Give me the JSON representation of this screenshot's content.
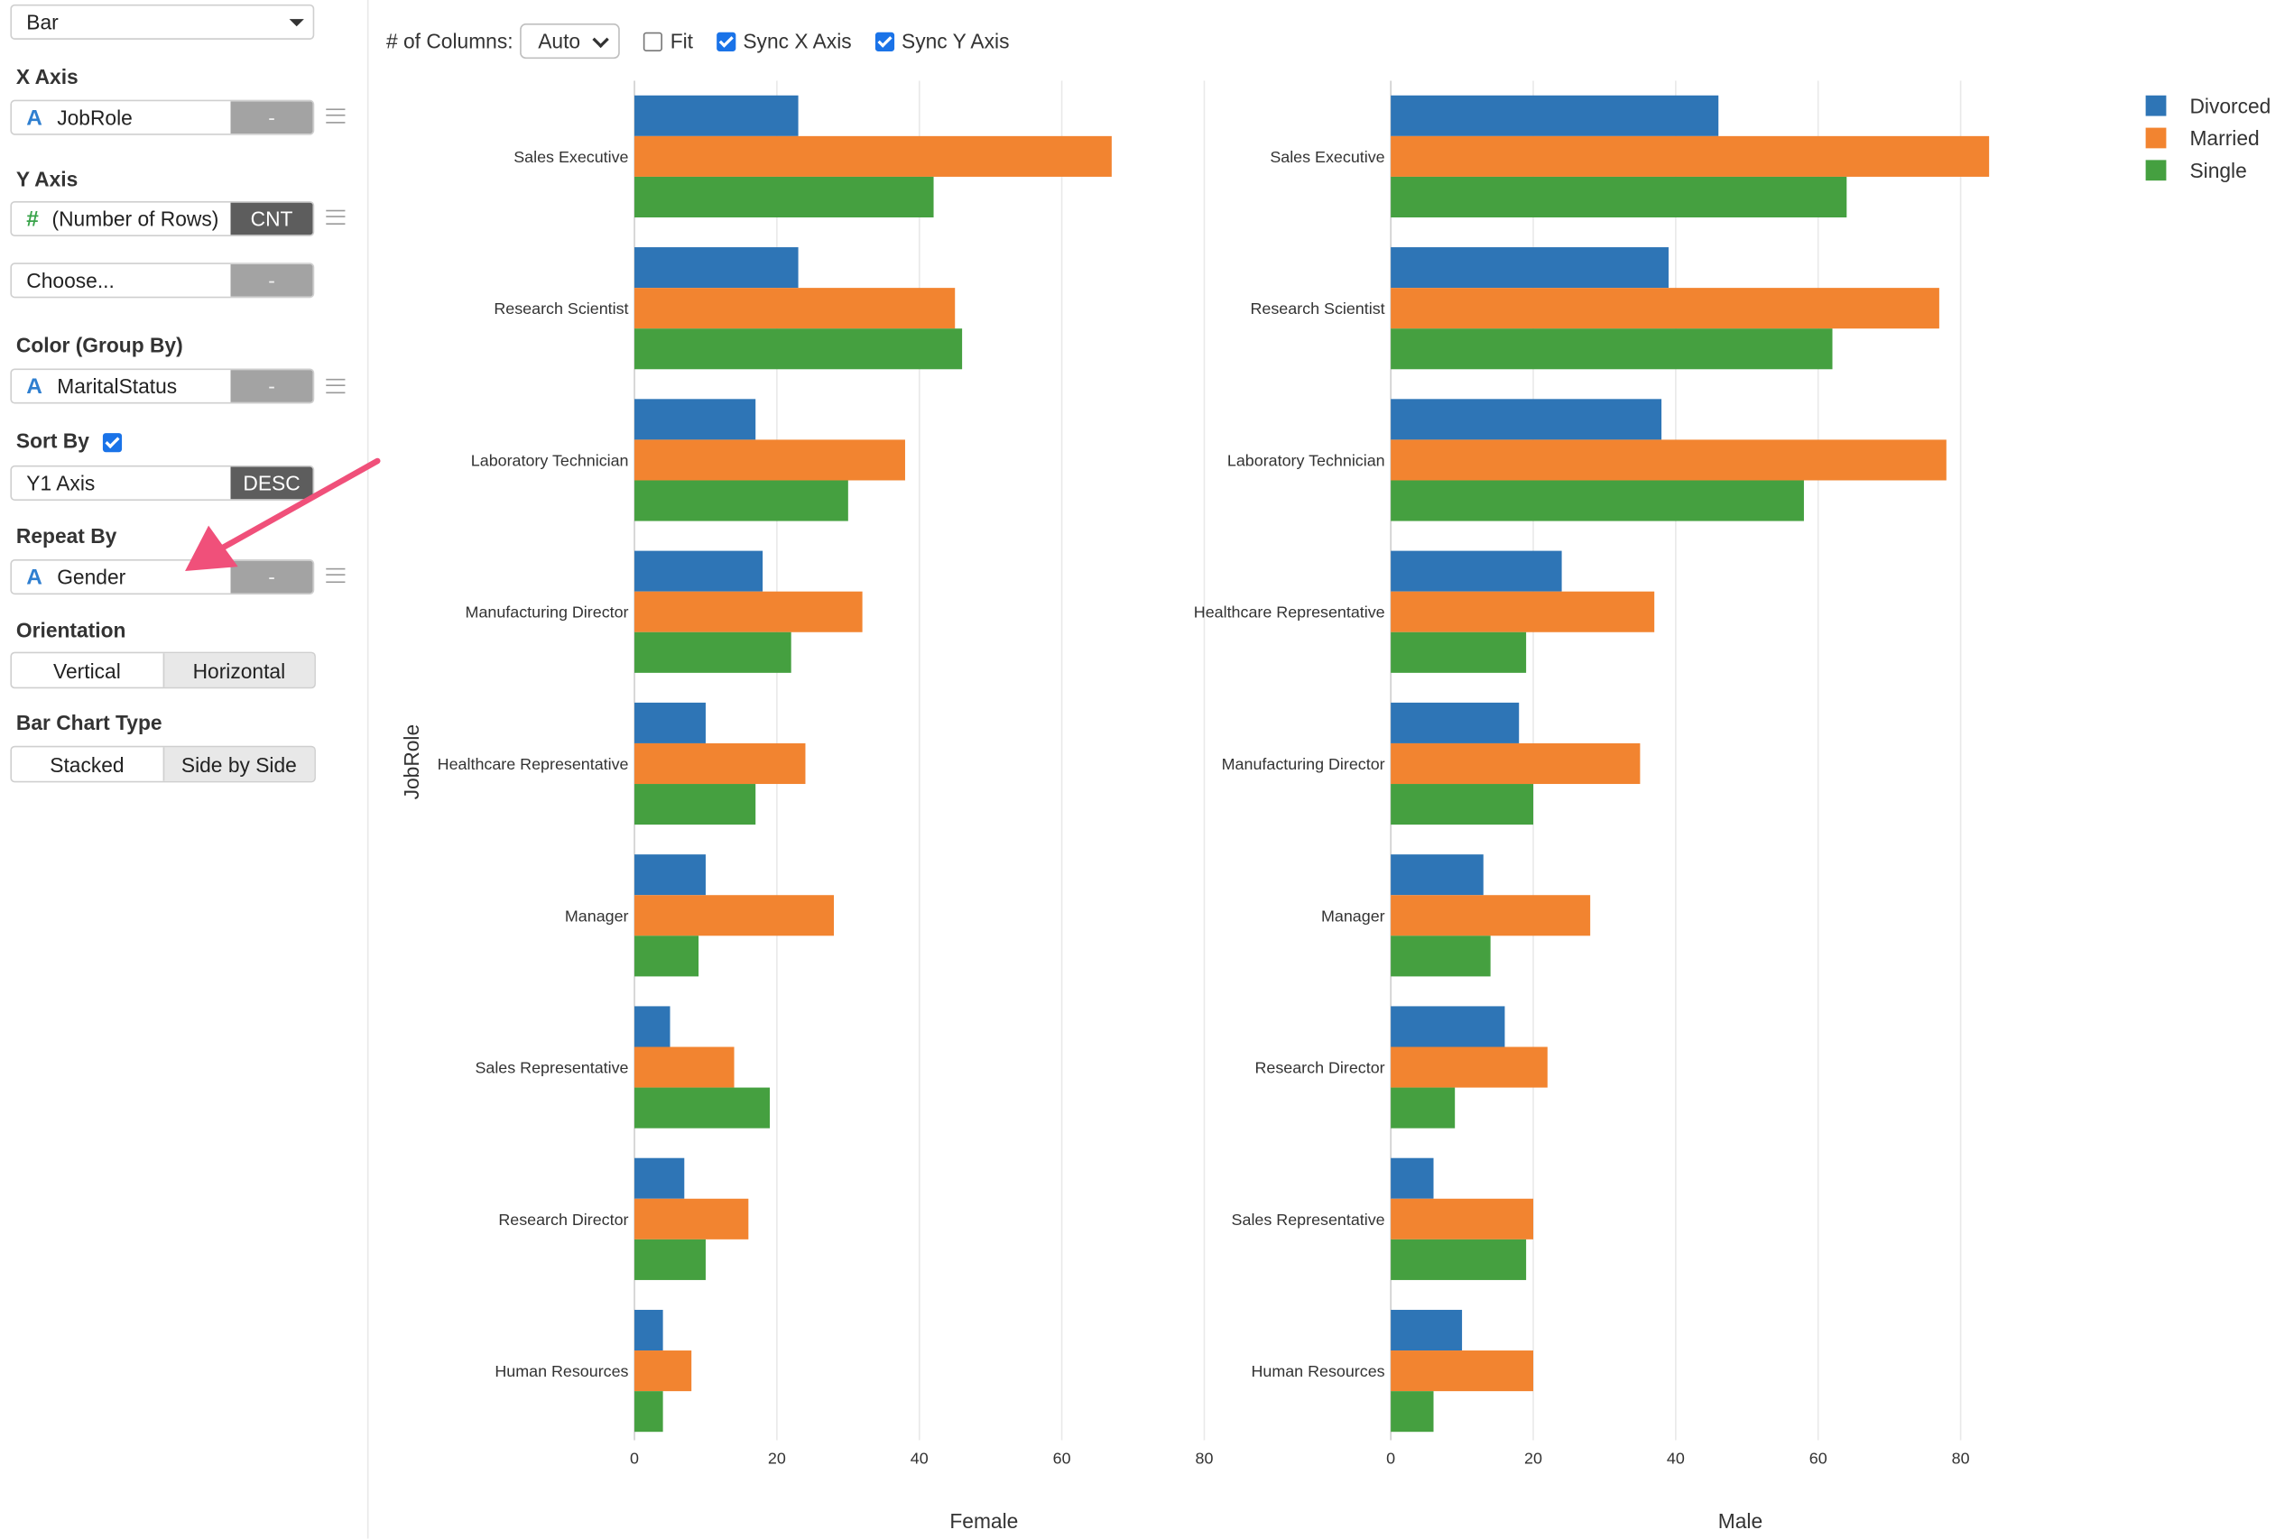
{
  "sidebar": {
    "chart_type": "Bar",
    "x_axis": {
      "label": "X Axis",
      "field": "JobRole",
      "field_type_icon": "A",
      "agg": "-"
    },
    "y_axis": {
      "label": "Y Axis",
      "field": "(Number of Rows)",
      "field_type_icon": "#",
      "agg": "CNT",
      "second_field": "Choose...",
      "second_agg": "-"
    },
    "color": {
      "label": "Color (Group By)",
      "field": "MaritalStatus",
      "field_type_icon": "A",
      "agg": "-"
    },
    "sort": {
      "label": "Sort By",
      "checked": true,
      "field": "Y1 Axis",
      "order": "DESC"
    },
    "repeat": {
      "label": "Repeat By",
      "field": "Gender",
      "field_type_icon": "A",
      "agg": "-"
    },
    "orientation": {
      "label": "Orientation",
      "options": [
        "Vertical",
        "Horizontal"
      ],
      "selected": "Horizontal"
    },
    "bar_type": {
      "label": "Bar Chart Type",
      "options": [
        "Stacked",
        "Side by Side"
      ],
      "selected": "Side by Side"
    }
  },
  "toolbar": {
    "columns_label": "# of Columns:",
    "columns_value": "Auto",
    "fit_label": "Fit",
    "fit_checked": false,
    "sync_x_label": "Sync X Axis",
    "sync_x_checked": true,
    "sync_y_label": "Sync Y Axis",
    "sync_y_checked": true
  },
  "colors": {
    "Divorced": "#2e75b6",
    "Married": "#f28430",
    "Single": "#45a040",
    "annotation_arrow": "#f0507a"
  },
  "chart_data": {
    "type": "bar",
    "orientation": "horizontal",
    "y_axis_title": "JobRole",
    "xlim": [
      0,
      80
    ],
    "x_ticks": [
      0,
      20,
      40,
      60,
      80
    ],
    "grid": true,
    "legend_position": "top-right",
    "legend": [
      "Divorced",
      "Married",
      "Single"
    ],
    "facets": [
      {
        "name": "Female",
        "categories": [
          "Sales Executive",
          "Research Scientist",
          "Laboratory Technician",
          "Manufacturing Director",
          "Healthcare Representative",
          "Manager",
          "Sales Representative",
          "Research Director",
          "Human Resources"
        ],
        "series": [
          {
            "name": "Divorced",
            "values": [
              23,
              23,
              17,
              18,
              10,
              10,
              5,
              7,
              4
            ]
          },
          {
            "name": "Married",
            "values": [
              67,
              45,
              38,
              32,
              24,
              28,
              14,
              16,
              8
            ]
          },
          {
            "name": "Single",
            "values": [
              42,
              46,
              30,
              22,
              17,
              9,
              19,
              10,
              4
            ]
          }
        ]
      },
      {
        "name": "Male",
        "categories": [
          "Sales Executive",
          "Research Scientist",
          "Laboratory Technician",
          "Healthcare Representative",
          "Manufacturing Director",
          "Manager",
          "Research Director",
          "Sales Representative",
          "Human Resources"
        ],
        "series": [
          {
            "name": "Divorced",
            "values": [
              46,
              39,
              38,
              24,
              18,
              13,
              16,
              6,
              10
            ]
          },
          {
            "name": "Married",
            "values": [
              84,
              77,
              78,
              37,
              35,
              28,
              22,
              20,
              20
            ]
          },
          {
            "name": "Single",
            "values": [
              64,
              62,
              58,
              19,
              20,
              14,
              9,
              19,
              6
            ]
          }
        ]
      }
    ]
  }
}
